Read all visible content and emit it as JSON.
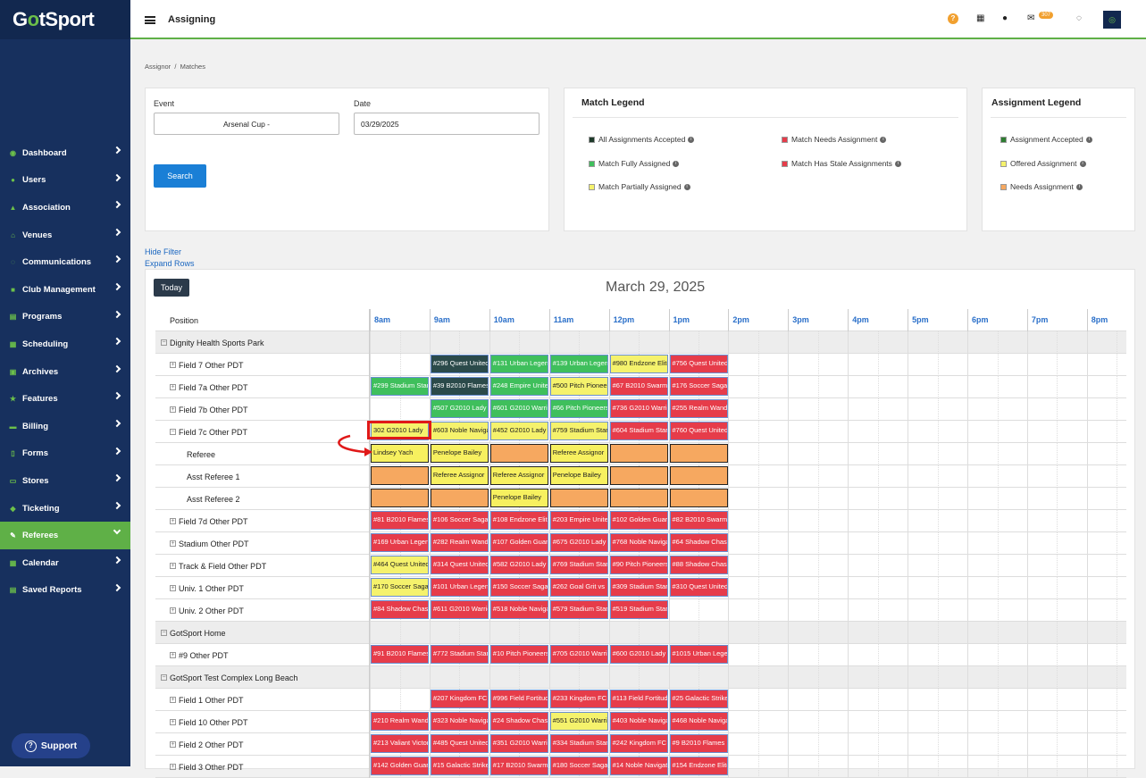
{
  "app": {
    "logo_pre": "G",
    "logo_o": "o",
    "logo_post": "tSport",
    "page_title": "Assigning",
    "mail_count": "307"
  },
  "sidebar": {
    "items": [
      {
        "label": "Dashboard",
        "icon": "dashboard-icon"
      },
      {
        "label": "Users",
        "icon": "users-icon"
      },
      {
        "label": "Association",
        "icon": "association-icon"
      },
      {
        "label": "Venues",
        "icon": "venues-icon"
      },
      {
        "label": "Communications",
        "icon": "communications-icon"
      },
      {
        "label": "Club Management",
        "icon": "club-icon"
      },
      {
        "label": "Programs",
        "icon": "programs-icon"
      },
      {
        "label": "Scheduling",
        "icon": "scheduling-icon"
      },
      {
        "label": "Archives",
        "icon": "archives-icon"
      },
      {
        "label": "Features",
        "icon": "features-icon"
      },
      {
        "label": "Billing",
        "icon": "billing-icon"
      },
      {
        "label": "Forms",
        "icon": "forms-icon"
      },
      {
        "label": "Stores",
        "icon": "stores-icon"
      },
      {
        "label": "Ticketing",
        "icon": "ticketing-icon"
      },
      {
        "label": "Referees",
        "icon": "referees-icon",
        "active": true
      },
      {
        "label": "Calendar",
        "icon": "calendar-icon"
      },
      {
        "label": "Saved Reports",
        "icon": "reports-icon"
      }
    ],
    "support_label": "Support"
  },
  "breadcrumb": {
    "first": "Assignor",
    "sep": "/",
    "second": "Matches"
  },
  "filter": {
    "event_label": "Event",
    "event_value": "Arsenal Cup -",
    "date_label": "Date",
    "date_value": "03/29/2025",
    "search_label": "Search"
  },
  "match_legend": {
    "title": "Match Legend",
    "items": [
      {
        "label": "All Assignments Accepted",
        "color": "#1e3a2a"
      },
      {
        "label": "Match Fully Assigned",
        "color": "#3fbf5c"
      },
      {
        "label": "Match Partially Assigned",
        "color": "#f5f26c"
      },
      {
        "label": "Match Needs Assignment",
        "color": "#e63c4a"
      },
      {
        "label": "Match Has Stale Assignments",
        "color": "#e63c4a"
      }
    ]
  },
  "assignment_legend": {
    "title": "Assignment Legend",
    "items": [
      {
        "label": "Assignment Accepted",
        "color": "#2e7d32"
      },
      {
        "label": "Offered Assignment",
        "color": "#f5f26c"
      },
      {
        "label": "Needs Assignment",
        "color": "#f6a860"
      }
    ]
  },
  "links": {
    "hide_filter": "Hide Filter",
    "expand_rows": "Expand Rows"
  },
  "calendar": {
    "today_label": "Today",
    "title": "March 29, 2025",
    "position_header": "Position",
    "hours": [
      "8am",
      "9am",
      "10am",
      "11am",
      "12pm",
      "1pm",
      "2pm",
      "3pm",
      "4pm",
      "5pm",
      "6pm",
      "7pm",
      "8pm"
    ],
    "rows": [
      {
        "label": "Dignity Health Sports Park",
        "type": "group",
        "events": []
      },
      {
        "label": "Field 7 Other PDT",
        "type": "field",
        "events": [
          {
            "h": 1,
            "t": "#296 Quest United",
            "c": "dark"
          },
          {
            "h": 2,
            "t": "#131 Urban Legends",
            "c": "green"
          },
          {
            "h": 3,
            "t": "#139 Urban Legends",
            "c": "green"
          },
          {
            "h": 4,
            "t": "#980 Endzone Elite",
            "c": "yellow"
          },
          {
            "h": 5,
            "t": "#756 Quest United",
            "c": "red"
          }
        ]
      },
      {
        "label": "Field 7a Other PDT",
        "type": "field",
        "events": [
          {
            "h": 0,
            "t": "#299 Stadium Stars",
            "c": "green"
          },
          {
            "h": 1,
            "t": "#39 B2010 Flames",
            "c": "dark"
          },
          {
            "h": 2,
            "t": "#248 Empire United",
            "c": "green"
          },
          {
            "h": 3,
            "t": "#500 Pitch Pioneers",
            "c": "yellow"
          },
          {
            "h": 4,
            "t": "#67 B2010 Swarm",
            "c": "red"
          },
          {
            "h": 5,
            "t": "#176 Soccer Saga",
            "c": "red"
          }
        ]
      },
      {
        "label": "Field 7b Other PDT",
        "type": "field",
        "events": [
          {
            "h": 1,
            "t": "#507 G2010 Lady",
            "c": "green"
          },
          {
            "h": 2,
            "t": "#601 G2010 Warriors",
            "c": "green"
          },
          {
            "h": 3,
            "t": "#66 Pitch Pioneers",
            "c": "green"
          },
          {
            "h": 4,
            "t": "#736 G2010 Warriors",
            "c": "red"
          },
          {
            "h": 5,
            "t": "#255 Realm Wanderers",
            "c": "red"
          }
        ]
      },
      {
        "label": "Field 7c Other PDT",
        "type": "field-open",
        "events": [
          {
            "h": 0,
            "t": "302 G2010 Lady",
            "c": "yellow"
          },
          {
            "h": 1,
            "t": "#603 Noble Navigators",
            "c": "yellow"
          },
          {
            "h": 2,
            "t": "#452 G2010 Lady",
            "c": "yellow"
          },
          {
            "h": 3,
            "t": "#759 Stadium Stars",
            "c": "yellow"
          },
          {
            "h": 4,
            "t": "#604 Stadium Stars",
            "c": "red"
          },
          {
            "h": 5,
            "t": "#760 Quest United",
            "c": "red"
          }
        ]
      },
      {
        "label": "Referee",
        "type": "sub",
        "events": [
          {
            "h": 0,
            "t": "Lindsey Yach",
            "c": "orangeY"
          },
          {
            "h": 1,
            "t": "Penelope Bailey",
            "c": "orangeY"
          },
          {
            "h": 2,
            "t": "",
            "c": "orange"
          },
          {
            "h": 3,
            "t": "Referee Assignor",
            "c": "orangeY"
          },
          {
            "h": 4,
            "t": "",
            "c": "orange"
          },
          {
            "h": 5,
            "t": "",
            "c": "orange"
          }
        ]
      },
      {
        "label": "Asst Referee 1",
        "type": "sub",
        "events": [
          {
            "h": 0,
            "t": "",
            "c": "orange"
          },
          {
            "h": 1,
            "t": "Referee Assignor",
            "c": "orangeY"
          },
          {
            "h": 2,
            "t": "Referee Assignor",
            "c": "orangeY"
          },
          {
            "h": 3,
            "t": "Penelope Bailey",
            "c": "orangeY"
          },
          {
            "h": 4,
            "t": "",
            "c": "orange"
          },
          {
            "h": 5,
            "t": "",
            "c": "orange"
          }
        ]
      },
      {
        "label": "Asst Referee 2",
        "type": "sub",
        "events": [
          {
            "h": 0,
            "t": "",
            "c": "orange"
          },
          {
            "h": 1,
            "t": "",
            "c": "orange"
          },
          {
            "h": 2,
            "t": "Penelope Bailey",
            "c": "orangeY"
          },
          {
            "h": 3,
            "t": "",
            "c": "orange"
          },
          {
            "h": 4,
            "t": "",
            "c": "orange"
          },
          {
            "h": 5,
            "t": "",
            "c": "orange"
          }
        ]
      },
      {
        "label": "Field 7d Other PDT",
        "type": "field",
        "events": [
          {
            "h": 0,
            "t": "#81 B2010 Flames",
            "c": "red"
          },
          {
            "h": 1,
            "t": "#106 Soccer Saga",
            "c": "red"
          },
          {
            "h": 2,
            "t": "#108 Endzone Elite",
            "c": "red"
          },
          {
            "h": 3,
            "t": "#203 Empire United",
            "c": "red"
          },
          {
            "h": 4,
            "t": "#102 Golden Guardians",
            "c": "red"
          },
          {
            "h": 5,
            "t": "#82 B2010 Swarm",
            "c": "red"
          }
        ]
      },
      {
        "label": "Stadium Other PDT",
        "type": "field",
        "events": [
          {
            "h": 0,
            "t": "#169 Urban Legends",
            "c": "red"
          },
          {
            "h": 1,
            "t": "#282 Realm Wanderers",
            "c": "red"
          },
          {
            "h": 2,
            "t": "#107 Golden Guardians",
            "c": "red"
          },
          {
            "h": 3,
            "t": "#675 G2010 Lady",
            "c": "red"
          },
          {
            "h": 4,
            "t": "#768 Noble Navigators",
            "c": "red"
          },
          {
            "h": 5,
            "t": "#64 Shadow Chasers",
            "c": "red"
          }
        ]
      },
      {
        "label": "Track & Field Other PDT",
        "type": "field",
        "events": [
          {
            "h": 0,
            "t": "#464 Quest United",
            "c": "yellow"
          },
          {
            "h": 1,
            "t": "#314 Quest United",
            "c": "red"
          },
          {
            "h": 2,
            "t": "#582 G2010 Lady",
            "c": "red"
          },
          {
            "h": 3,
            "t": "#769 Stadium Stars",
            "c": "red"
          },
          {
            "h": 4,
            "t": "#90 Pitch Pioneers",
            "c": "red"
          },
          {
            "h": 5,
            "t": "#88 Shadow Chasers",
            "c": "red"
          }
        ]
      },
      {
        "label": "Univ. 1 Other PDT",
        "type": "field",
        "events": [
          {
            "h": 0,
            "t": "#170 Soccer Saga",
            "c": "yellow"
          },
          {
            "h": 1,
            "t": "#101 Urban Legends",
            "c": "red"
          },
          {
            "h": 2,
            "t": "#150 Soccer Saga",
            "c": "red"
          },
          {
            "h": 3,
            "t": "#262 Goal Grit vs",
            "c": "red"
          },
          {
            "h": 4,
            "t": "#309 Stadium Stars",
            "c": "red"
          },
          {
            "h": 5,
            "t": "#310 Quest United",
            "c": "red"
          }
        ]
      },
      {
        "label": "Univ. 2 Other PDT",
        "type": "field",
        "events": [
          {
            "h": 0,
            "t": "#84 Shadow Chasers",
            "c": "red"
          },
          {
            "h": 1,
            "t": "#611 G2010 Warriors",
            "c": "red"
          },
          {
            "h": 2,
            "t": "#518 Noble Navigators",
            "c": "red"
          },
          {
            "h": 3,
            "t": "#579 Stadium Stars",
            "c": "red"
          },
          {
            "h": 4,
            "t": "#519 Stadium Stars",
            "c": "red"
          }
        ]
      },
      {
        "label": "GotSport Home",
        "type": "group",
        "events": []
      },
      {
        "label": "#9 Other PDT",
        "type": "field",
        "events": [
          {
            "h": 0,
            "t": "#91 B2010 Flames",
            "c": "red"
          },
          {
            "h": 1,
            "t": "#772 Stadium Stars",
            "c": "red"
          },
          {
            "h": 2,
            "t": "#10 Pitch Pioneers",
            "c": "red"
          },
          {
            "h": 3,
            "t": "#705 G2010 Warriors",
            "c": "red"
          },
          {
            "h": 4,
            "t": "#600 G2010 Lady",
            "c": "red"
          },
          {
            "h": 5,
            "t": "#1015 Urban Legends",
            "c": "red"
          }
        ]
      },
      {
        "label": "GotSport Test Complex Long Beach",
        "type": "group",
        "events": []
      },
      {
        "label": "Field 1 Other PDT",
        "type": "field",
        "events": [
          {
            "h": 1,
            "t": "#207 Kingdom FC",
            "c": "red"
          },
          {
            "h": 2,
            "t": "#996 Field Fortitude",
            "c": "red"
          },
          {
            "h": 3,
            "t": "#233 Kingdom FC",
            "c": "red"
          },
          {
            "h": 4,
            "t": "#113 Field Fortitude",
            "c": "red"
          },
          {
            "h": 5,
            "t": "#25 Galactic Strikers",
            "c": "red"
          }
        ]
      },
      {
        "label": "Field 10 Other PDT",
        "type": "field",
        "events": [
          {
            "h": 0,
            "t": "#210 Realm Wanderers",
            "c": "red"
          },
          {
            "h": 1,
            "t": "#323 Noble Navigators",
            "c": "red"
          },
          {
            "h": 2,
            "t": "#24 Shadow Chasers",
            "c": "red"
          },
          {
            "h": 3,
            "t": "#551 G2010 Warriors",
            "c": "yellow"
          },
          {
            "h": 4,
            "t": "#403 Noble Navigators",
            "c": "red"
          },
          {
            "h": 5,
            "t": "#468 Noble Navigators",
            "c": "red"
          }
        ]
      },
      {
        "label": "Field 2 Other PDT",
        "type": "field",
        "events": [
          {
            "h": 0,
            "t": "#213 Valiant Victors",
            "c": "red"
          },
          {
            "h": 1,
            "t": "#485 Quest United",
            "c": "red"
          },
          {
            "h": 2,
            "t": "#351 G2010 Warriors",
            "c": "red"
          },
          {
            "h": 3,
            "t": "#334 Stadium Stars",
            "c": "red"
          },
          {
            "h": 4,
            "t": "#242 Kingdom FC",
            "c": "red"
          },
          {
            "h": 5,
            "t": "#9 B2010 Flames",
            "c": "red"
          }
        ]
      },
      {
        "label": "Field 3 Other PDT",
        "type": "field",
        "events": [
          {
            "h": 0,
            "t": "#142 Golden Guardians",
            "c": "red"
          },
          {
            "h": 1,
            "t": "#15 Galactic Strikers",
            "c": "red"
          },
          {
            "h": 2,
            "t": "#17 B2010 Swarm",
            "c": "red"
          },
          {
            "h": 3,
            "t": "#180 Soccer Saga",
            "c": "red"
          },
          {
            "h": 4,
            "t": "#14 Noble Navigators",
            "c": "red"
          },
          {
            "h": 5,
            "t": "#154 Endzone Elite",
            "c": "red"
          }
        ]
      }
    ]
  }
}
